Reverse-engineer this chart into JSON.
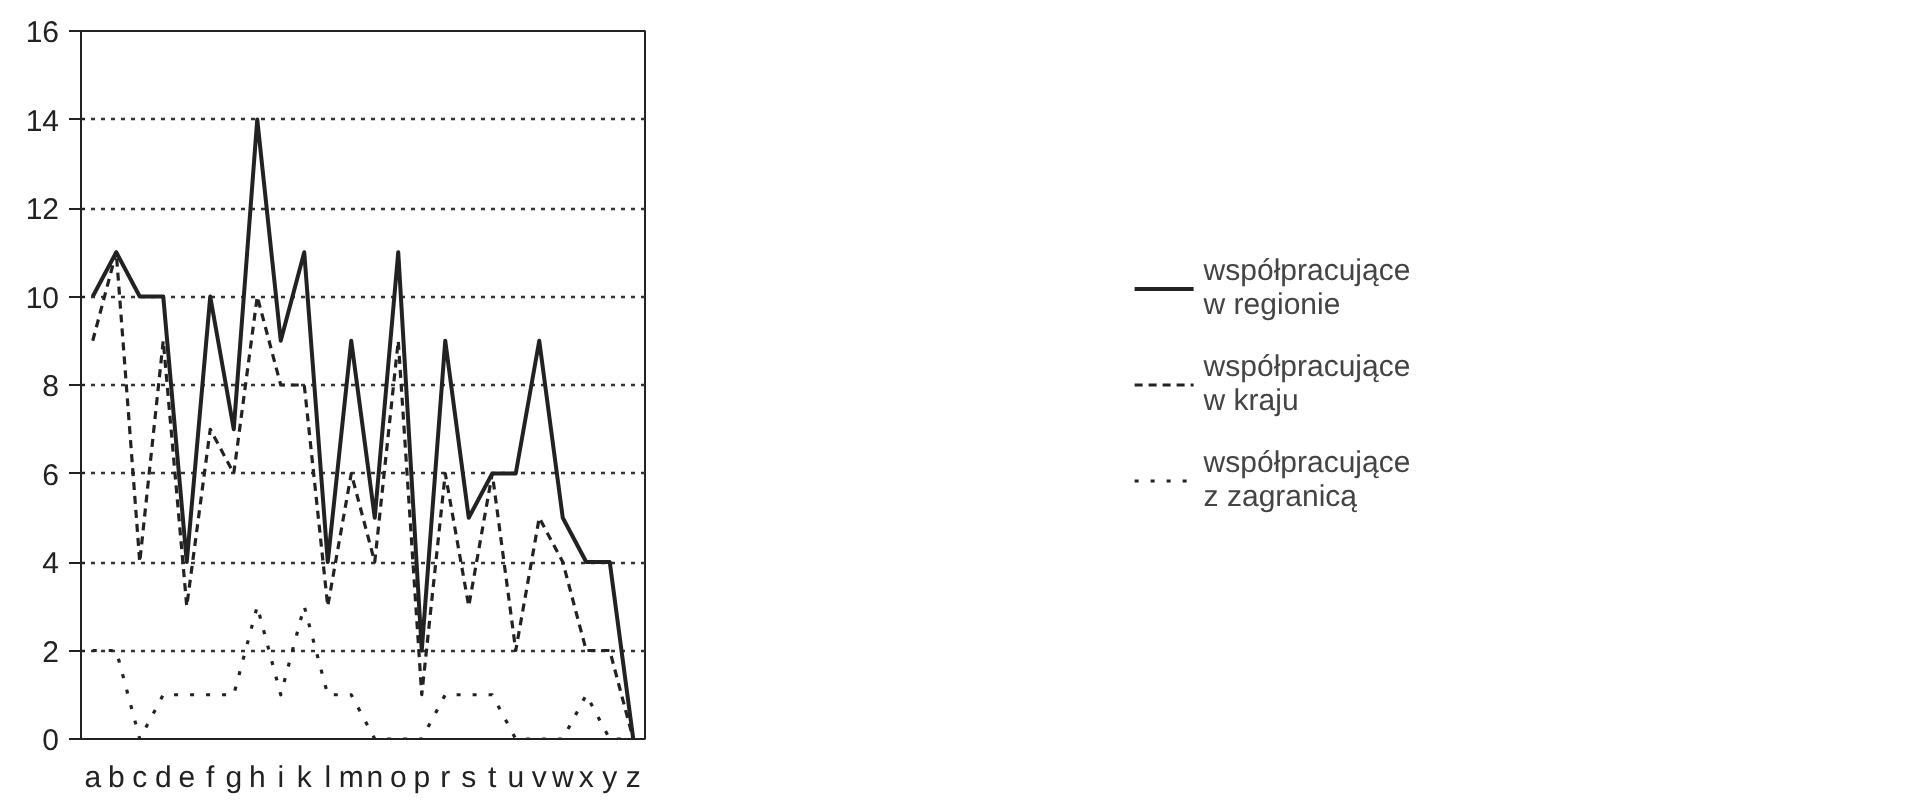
{
  "chart_data": {
    "type": "line",
    "categories": [
      "a",
      "b",
      "c",
      "d",
      "e",
      "f",
      "g",
      "h",
      "i",
      "k",
      "l",
      "m",
      "n",
      "o",
      "p",
      "r",
      "s",
      "t",
      "u",
      "v",
      "w",
      "x",
      "y",
      "z"
    ],
    "series": [
      {
        "name": "współpracujące w regionie",
        "color": "#222222",
        "line_style": "solid",
        "values": [
          10,
          11,
          10,
          10,
          4,
          10,
          7,
          14,
          9,
          11,
          4,
          9,
          5,
          11,
          2,
          9,
          5,
          6,
          6,
          9,
          5,
          4,
          4,
          0
        ]
      },
      {
        "name": "współpracujące w kraju",
        "color": "#222222",
        "line_style": "dashed",
        "values": [
          9,
          11,
          4,
          9,
          3,
          7,
          6,
          10,
          8,
          8,
          3,
          6,
          4,
          9,
          1,
          6,
          3,
          6,
          2,
          5,
          4,
          2,
          2,
          0
        ]
      },
      {
        "name": "współpracujące z zagranicą",
        "color": "#222222",
        "line_style": "dotted",
        "values": [
          2,
          2,
          0,
          1,
          1,
          1,
          1,
          3,
          1,
          3,
          1,
          1,
          0,
          0,
          0,
          1,
          1,
          1,
          0,
          0,
          0,
          1,
          0,
          0
        ]
      }
    ],
    "ylim": [
      0,
      16
    ],
    "yticks": [
      0,
      2,
      4,
      6,
      8,
      10,
      12,
      14,
      16
    ],
    "grid": "y",
    "legend": "right",
    "marker": "none"
  }
}
